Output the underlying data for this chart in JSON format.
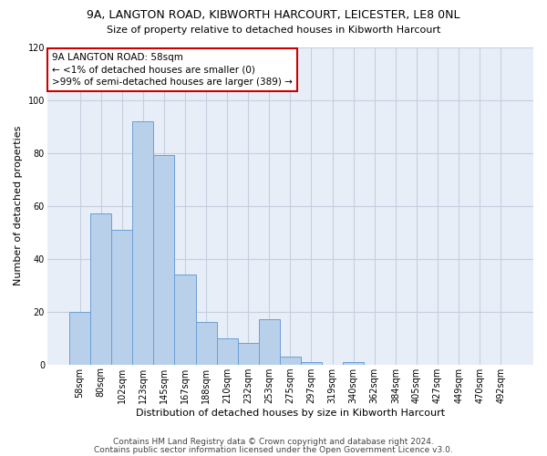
{
  "title1": "9A, LANGTON ROAD, KIBWORTH HARCOURT, LEICESTER, LE8 0NL",
  "title2": "Size of property relative to detached houses in Kibworth Harcourt",
  "xlabel": "Distribution of detached houses by size in Kibworth Harcourt",
  "ylabel": "Number of detached properties",
  "categories": [
    "58sqm",
    "80sqm",
    "102sqm",
    "123sqm",
    "145sqm",
    "167sqm",
    "188sqm",
    "210sqm",
    "232sqm",
    "253sqm",
    "275sqm",
    "297sqm",
    "319sqm",
    "340sqm",
    "362sqm",
    "384sqm",
    "405sqm",
    "427sqm",
    "449sqm",
    "470sqm",
    "492sqm"
  ],
  "values": [
    20,
    57,
    51,
    92,
    79,
    34,
    16,
    10,
    8,
    17,
    3,
    1,
    0,
    1,
    0,
    0,
    0,
    0,
    0,
    0,
    0
  ],
  "bar_color": "#b8d0ea",
  "bar_edge_color": "#6a9fd8",
  "ylim": [
    0,
    120
  ],
  "yticks": [
    0,
    20,
    40,
    60,
    80,
    100,
    120
  ],
  "annotation_text": "9A LANGTON ROAD: 58sqm\n← <1% of detached houses are smaller (0)\n>99% of semi-detached houses are larger (389) →",
  "annotation_box_color": "#ffffff",
  "annotation_box_edge": "#cc0000",
  "footer1": "Contains HM Land Registry data © Crown copyright and database right 2024.",
  "footer2": "Contains public sector information licensed under the Open Government Licence v3.0.",
  "bg_color": "#e8eef8",
  "grid_color": "#c5cfe0",
  "title1_fontsize": 9,
  "title2_fontsize": 8,
  "tick_fontsize": 7,
  "ylabel_fontsize": 8,
  "xlabel_fontsize": 8,
  "annotation_fontsize": 7.5,
  "footer_fontsize": 6.5
}
